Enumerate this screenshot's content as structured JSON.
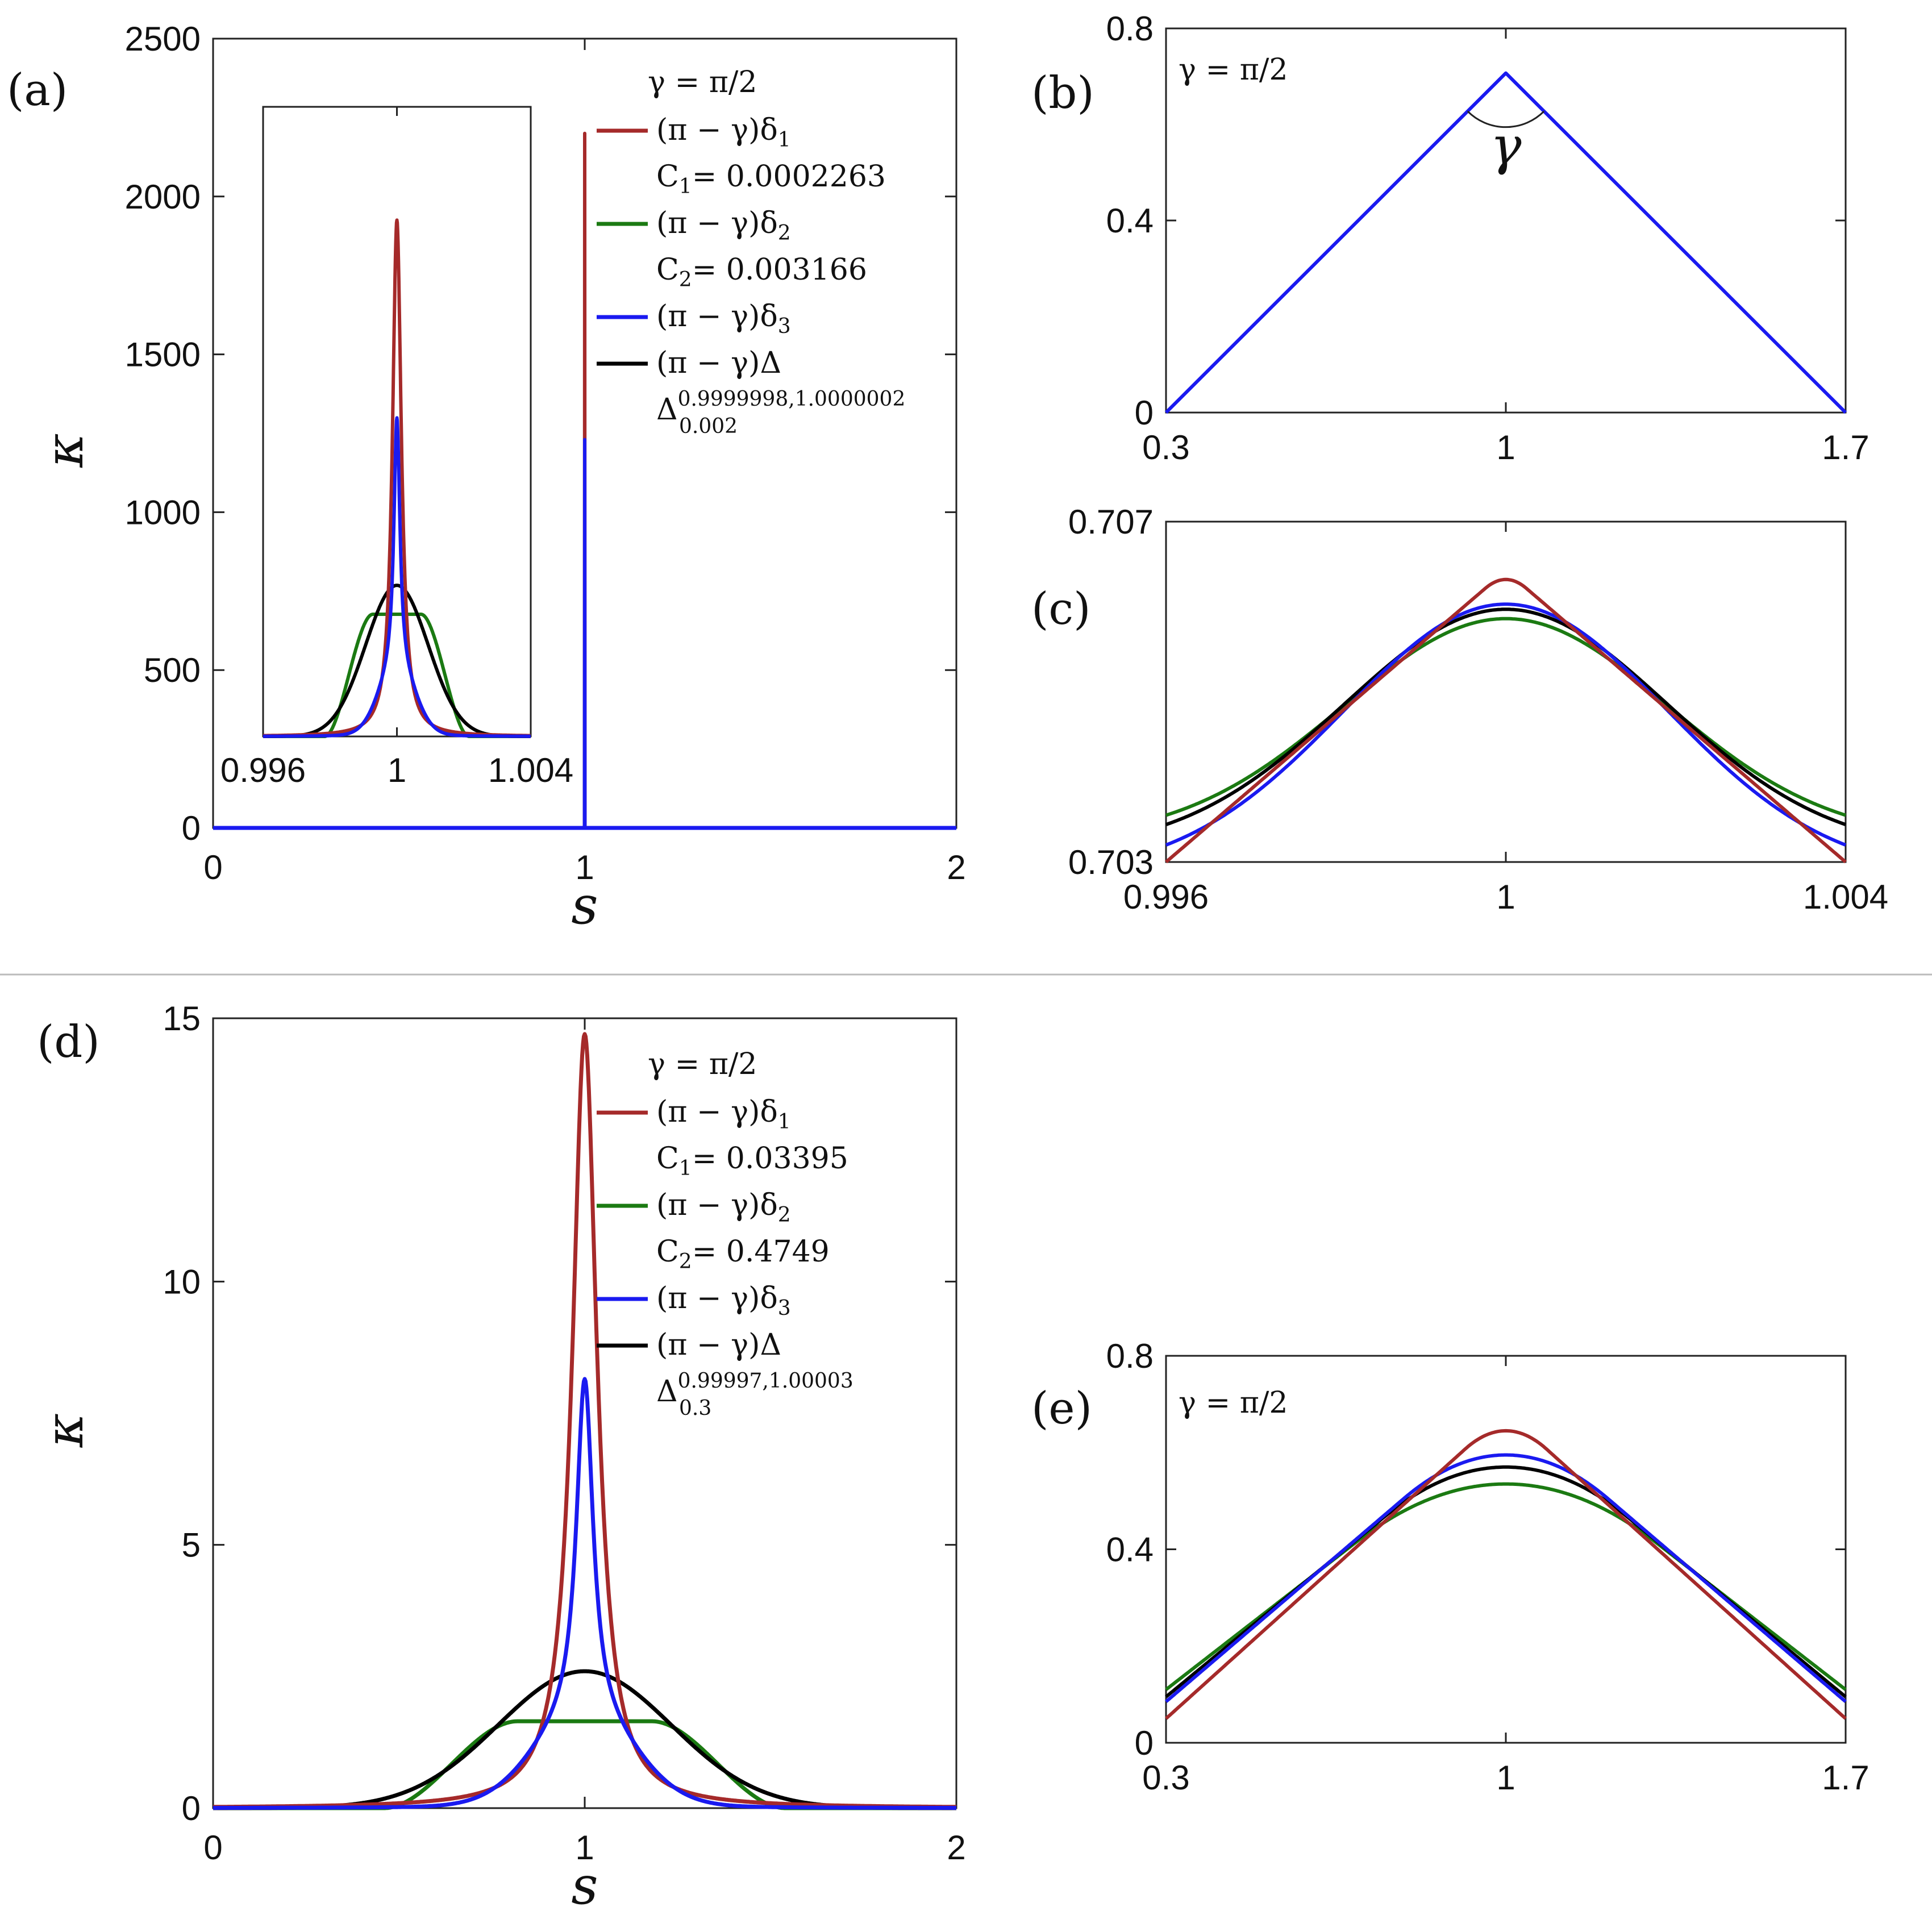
{
  "colors": {
    "delta1": "#A52A2A",
    "delta2": "#1B7A12",
    "delta3": "#1A1AF0",
    "Delta": "#000000",
    "divider": "#BBBBBB"
  },
  "chart_data": [
    {
      "id": "a",
      "type": "line",
      "panel_label": "(a)",
      "xlabel": "s",
      "ylabel": "κ",
      "xlim": [
        0,
        2
      ],
      "ylim": [
        0,
        2500
      ],
      "x_ticks": [
        0,
        1,
        2
      ],
      "x_tick_labels": [
        "0",
        "1",
        "2"
      ],
      "y_ticks": [
        0,
        500,
        1000,
        1500,
        2000,
        2500
      ],
      "y_tick_labels": [
        "0",
        "500",
        "1000",
        "1500",
        "2000",
        "2500"
      ],
      "legend": {
        "title": "γ = π/2",
        "entries": [
          {
            "series": "delta1",
            "label": "(π − γ)δ",
            "sub": "1",
            "note": "C",
            "note_sub": "1",
            "note_value": "= 0.0002263"
          },
          {
            "series": "delta2",
            "label": "(π − γ)δ",
            "sub": "2",
            "note": "C",
            "note_sub": "2",
            "note_value": "= 0.003166"
          },
          {
            "series": "delta3",
            "label": "(π − γ)δ",
            "sub": "3"
          },
          {
            "series": "Delta",
            "label": "(π − γ)Δ",
            "note": "Δ",
            "note_sup": "0.9999998,1.0000002",
            "note_sub": "0.002"
          }
        ]
      },
      "series": [
        {
          "name": "delta1",
          "peak_x": 1.0,
          "peak_y": 2200
        },
        {
          "name": "delta3",
          "peak_x": 1.0,
          "peak_y": 1230
        },
        {
          "name": "delta2",
          "peak_x": 1.0,
          "peak_y": 480
        },
        {
          "name": "Delta",
          "peak_x": 1.0,
          "peak_y": 590
        }
      ]
    },
    {
      "id": "a_inset",
      "type": "line",
      "xlim": [
        0.996,
        1.004
      ],
      "ylim": [
        0,
        2500
      ],
      "x_ticks": [
        0.996,
        1,
        1.004
      ],
      "x_tick_labels": [
        "0.996",
        "1",
        "1.004"
      ],
      "series": [
        {
          "name": "delta1",
          "peak_y": 2050
        },
        {
          "name": "delta3",
          "peak_y": 1265
        },
        {
          "name": "delta2",
          "plateau_y": 485
        },
        {
          "name": "Delta",
          "peak_y": 600
        }
      ]
    },
    {
      "id": "b",
      "type": "line",
      "panel_label": "(b)",
      "annotation": "γ = π/2",
      "angle_label": "γ",
      "xlim": [
        0.3,
        1.7
      ],
      "ylim": [
        0,
        0.8
      ],
      "x_ticks": [
        0.3,
        1,
        1.7
      ],
      "x_tick_labels": [
        "0.3",
        "1",
        "1.7"
      ],
      "y_ticks": [
        0,
        0.4,
        0.8
      ],
      "y_tick_labels": [
        "0",
        "0.4",
        "0.8"
      ],
      "series": [
        {
          "name": "delta3",
          "x": [
            0.3,
            1.0,
            1.7
          ],
          "y": [
            0.0,
            0.707,
            0.0
          ]
        }
      ]
    },
    {
      "id": "c",
      "type": "line",
      "panel_label": "(c)",
      "xlim": [
        0.996,
        1.004
      ],
      "ylim": [
        0.703,
        0.707
      ],
      "x_ticks": [
        0.996,
        1,
        1.004
      ],
      "x_tick_labels": [
        "0.996",
        "1",
        "1.004"
      ],
      "y_ticks": [
        0.703,
        0.707
      ],
      "y_tick_labels": [
        "0.703",
        "0.707"
      ],
      "series": [
        {
          "name": "delta2",
          "peak_y": 0.70586,
          "edge_y": 0.70355
        },
        {
          "name": "Delta",
          "peak_y": 0.70597,
          "edge_y": 0.70344
        },
        {
          "name": "delta3",
          "peak_y": 0.70603,
          "edge_y": 0.7032
        },
        {
          "name": "delta1",
          "peak_y": 0.70632,
          "edge_y": 0.703
        }
      ]
    },
    {
      "id": "d",
      "type": "line",
      "panel_label": "(d)",
      "xlabel": "s",
      "ylabel": "κ",
      "xlim": [
        0,
        2
      ],
      "ylim": [
        0,
        15
      ],
      "x_ticks": [
        0,
        1,
        2
      ],
      "x_tick_labels": [
        "0",
        "1",
        "2"
      ],
      "y_ticks": [
        0,
        5,
        10,
        15
      ],
      "y_tick_labels": [
        "0",
        "5",
        "10",
        "15"
      ],
      "legend": {
        "title": "γ = π/2",
        "entries": [
          {
            "series": "delta1",
            "label": "(π − γ)δ",
            "sub": "1",
            "note": "C",
            "note_sub": "1",
            "note_value": "= 0.03395"
          },
          {
            "series": "delta2",
            "label": "(π − γ)δ",
            "sub": "2",
            "note": "C",
            "note_sub": "2",
            "note_value": "= 0.4749"
          },
          {
            "series": "delta3",
            "label": "(π − γ)δ",
            "sub": "3"
          },
          {
            "series": "Delta",
            "label": "(π − γ)Δ",
            "note": "Δ",
            "note_sup": "0.99997,1.00003",
            "note_sub": "0.3"
          }
        ]
      },
      "series": [
        {
          "name": "delta1",
          "peak_x": 1.0,
          "peak_y": 14.7
        },
        {
          "name": "delta3",
          "peak_x": 1.0,
          "peak_y": 8.15
        },
        {
          "name": "delta2",
          "plateau_y": 1.65
        },
        {
          "name": "Delta",
          "peak_x": 1.0,
          "peak_y": 2.6
        }
      ]
    },
    {
      "id": "e",
      "type": "line",
      "panel_label": "(e)",
      "annotation": "γ = π/2",
      "xlim": [
        0.3,
        1.7
      ],
      "ylim": [
        0,
        0.8
      ],
      "x_ticks": [
        0.3,
        1,
        1.7
      ],
      "x_tick_labels": [
        "0.3",
        "1",
        "1.7"
      ],
      "y_ticks": [
        0,
        0.4,
        0.8
      ],
      "y_tick_labels": [
        "0",
        "0.4",
        "0.8"
      ],
      "series": [
        {
          "name": "delta2",
          "peak_y": 0.535,
          "edge_y": 0.11
        },
        {
          "name": "Delta",
          "peak_y": 0.57,
          "edge_y": 0.095
        },
        {
          "name": "delta3",
          "peak_y": 0.595,
          "edge_y": 0.085
        },
        {
          "name": "delta1",
          "peak_y": 0.645,
          "edge_y": 0.05
        }
      ]
    }
  ]
}
